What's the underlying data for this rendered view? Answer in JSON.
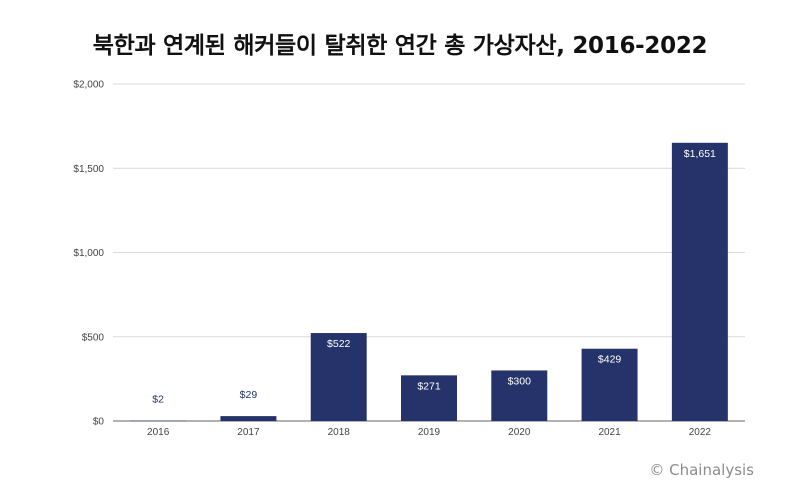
{
  "credit": "© Chainalysis",
  "chart_data": {
    "type": "bar",
    "title": "북한과 연계된 해커들이 탈취한 연간 총 가상자산, 2016-2022",
    "xlabel": "",
    "ylabel": "",
    "categories": [
      "2016",
      "2017",
      "2018",
      "2019",
      "2020",
      "2021",
      "2022"
    ],
    "values": [
      2,
      29,
      522,
      271,
      300,
      429,
      1651
    ],
    "value_labels": [
      "$2",
      "$29",
      "$522",
      "$271",
      "$300",
      "$429",
      "$1,651"
    ],
    "ylim": [
      0,
      2000
    ],
    "yticks": [
      0,
      500,
      1000,
      1500,
      2000
    ],
    "ytick_labels": [
      "$0",
      "$500",
      "$1,000",
      "$1,500",
      "$2,000"
    ],
    "grid": true,
    "legend": "none",
    "bar_color": "#26336b",
    "label_inside_color": "#ffffff",
    "label_outside_color": "#26336b"
  }
}
